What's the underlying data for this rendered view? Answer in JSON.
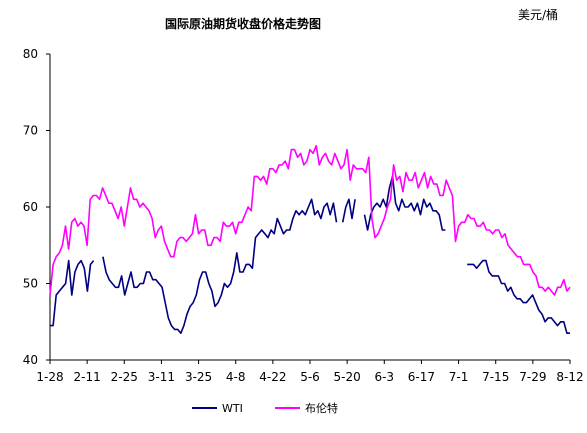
{
  "chart_data": {
    "type": "line",
    "title": "国际原油期货收盘价格走势图",
    "unit_label": "美元/桶",
    "x_tick_labels": [
      "1-28",
      "2-11",
      "2-25",
      "3-11",
      "3-25",
      "4-8",
      "4-22",
      "5-6",
      "5-20",
      "6-3",
      "6-17",
      "7-1",
      "7-15",
      "7-29",
      "8-12"
    ],
    "y_ticks": [
      40,
      50,
      60,
      70,
      80
    ],
    "ylim": [
      40,
      80
    ],
    "grid": false,
    "legend_position": "bottom",
    "series": [
      {
        "name": "WTI",
        "color": "#000080",
        "values": [
          44.5,
          44.5,
          48.5,
          49.0,
          49.5,
          50.0,
          53.0,
          48.5,
          51.5,
          52.5,
          53.0,
          52.0,
          49.0,
          52.5,
          53.0,
          null,
          null,
          53.5,
          51.5,
          50.5,
          50.0,
          49.5,
          49.5,
          51.0,
          48.5,
          50.0,
          51.5,
          49.5,
          49.5,
          50.0,
          50.0,
          51.5,
          51.5,
          50.5,
          50.5,
          50.0,
          49.5,
          47.5,
          45.5,
          44.5,
          44.0,
          44.0,
          43.5,
          44.5,
          46.0,
          47.0,
          47.5,
          48.5,
          50.5,
          51.5,
          51.5,
          50.0,
          49.0,
          47.0,
          47.5,
          48.5,
          50.0,
          49.5,
          50.0,
          51.5,
          54.0,
          51.5,
          51.5,
          52.5,
          52.5,
          52.0,
          56.0,
          56.5,
          57.0,
          56.5,
          56.0,
          57.0,
          56.5,
          58.5,
          57.5,
          56.5,
          57.0,
          57.0,
          58.5,
          59.5,
          59.0,
          59.5,
          59.0,
          60.0,
          61.0,
          59.0,
          59.5,
          58.5,
          60.0,
          60.5,
          59.0,
          60.5,
          58.0,
          null,
          58.0,
          60.0,
          61.0,
          58.5,
          61.0,
          null,
          null,
          59.0,
          57.0,
          59.0,
          60.0,
          60.5,
          60.0,
          61.0,
          60.0,
          62.5,
          64.0,
          60.5,
          59.5,
          61.0,
          60.0,
          60.0,
          60.5,
          59.5,
          60.5,
          59.0,
          61.0,
          60.0,
          60.5,
          59.5,
          59.5,
          59.0,
          57.0,
          57.0,
          null,
          null,
          null,
          null,
          null,
          null,
          52.5,
          52.5,
          52.5,
          52.0,
          52.5,
          53.0,
          53.0,
          51.5,
          51.0,
          51.0,
          51.0,
          50.0,
          50.0,
          49.0,
          49.5,
          48.5,
          48.0,
          48.0,
          47.5,
          47.5,
          48.0,
          48.5,
          47.5,
          46.5,
          46.0,
          45.0,
          45.5,
          45.5,
          45.0,
          44.5,
          45.0,
          45.0,
          43.5,
          43.5
        ]
      },
      {
        "name": "布伦特",
        "color": "#FF00FF",
        "values": [
          48.5,
          52.5,
          53.5,
          54.0,
          55.0,
          57.5,
          54.5,
          58.0,
          58.5,
          57.5,
          58.0,
          57.5,
          55.0,
          61.0,
          61.5,
          61.5,
          61.0,
          62.5,
          61.5,
          60.5,
          60.5,
          59.5,
          58.5,
          60.0,
          57.5,
          60.0,
          62.5,
          61.0,
          61.0,
          60.0,
          60.5,
          60.0,
          59.5,
          58.5,
          56.0,
          57.0,
          57.5,
          55.5,
          54.5,
          53.5,
          53.5,
          55.5,
          56.0,
          56.0,
          55.5,
          56.0,
          56.5,
          59.0,
          56.5,
          57.0,
          57.0,
          55.0,
          55.0,
          56.0,
          56.0,
          55.5,
          58.0,
          57.5,
          57.5,
          58.0,
          56.5,
          58.0,
          58.0,
          59.0,
          60.0,
          59.5,
          64.0,
          64.0,
          63.5,
          64.0,
          63.0,
          65.0,
          65.0,
          64.5,
          65.5,
          65.5,
          66.0,
          65.0,
          67.5,
          67.5,
          66.5,
          67.0,
          65.5,
          66.0,
          67.5,
          67.0,
          68.0,
          65.5,
          66.5,
          67.0,
          66.0,
          65.5,
          67.0,
          66.0,
          65.0,
          65.5,
          67.5,
          63.5,
          65.5,
          65.0,
          65.0,
          65.0,
          64.5,
          66.5,
          58.5,
          56.0,
          56.5,
          57.5,
          58.5,
          60.0,
          61.0,
          65.5,
          63.5,
          64.0,
          62.0,
          64.5,
          63.5,
          63.5,
          64.5,
          62.5,
          63.5,
          64.5,
          62.5,
          64.0,
          63.0,
          63.0,
          61.5,
          61.5,
          63.5,
          62.5,
          61.5,
          55.5,
          57.5,
          58.0,
          58.0,
          59.0,
          58.5,
          58.5,
          57.5,
          57.5,
          58.0,
          57.0,
          57.0,
          56.5,
          57.0,
          57.0,
          56.0,
          56.5,
          55.0,
          54.5,
          54.0,
          53.5,
          53.5,
          52.5,
          52.5,
          52.5,
          51.5,
          51.0,
          49.5,
          49.5,
          49.0,
          49.5,
          49.0,
          48.5,
          49.5,
          49.5,
          50.5,
          49.0,
          49.5
        ]
      }
    ]
  }
}
